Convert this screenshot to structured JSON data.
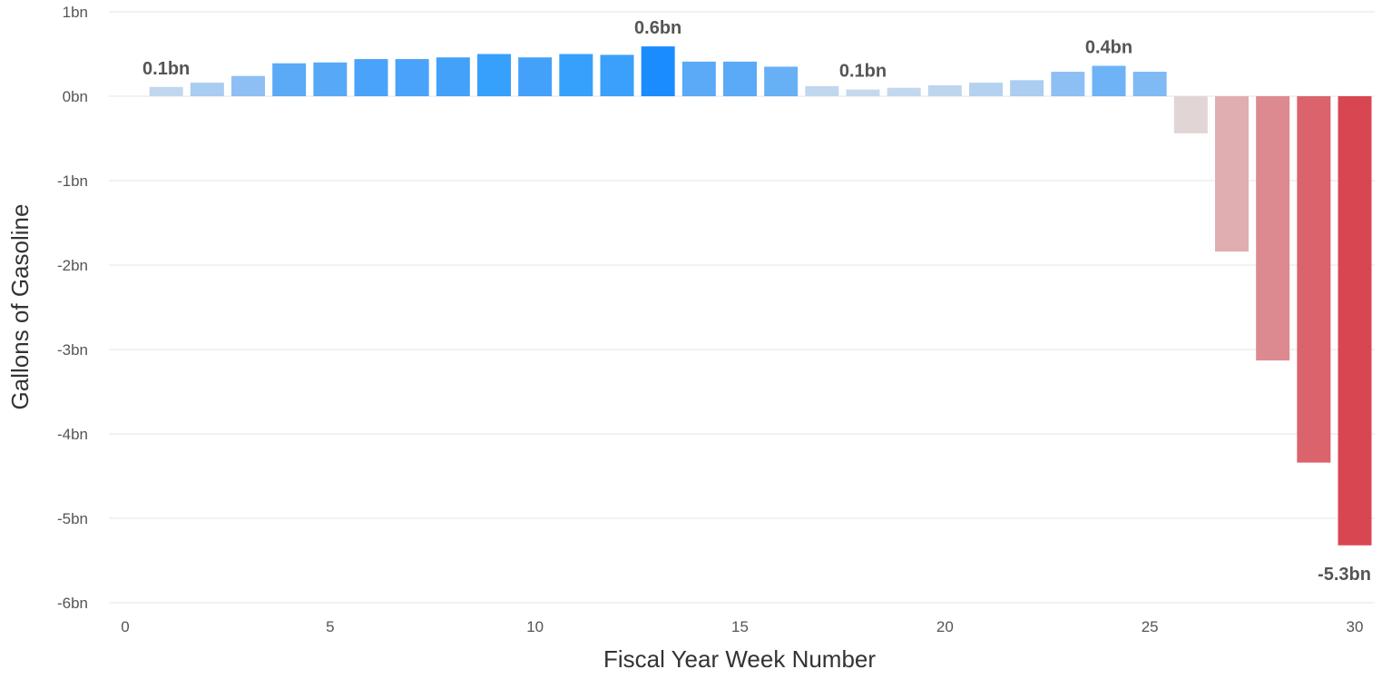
{
  "chart_data": {
    "type": "bar",
    "xlabel": "Fiscal Year Week Number",
    "ylabel": "Gallons of Gasoline",
    "xlim": [
      0,
      30
    ],
    "ylim": [
      -6,
      1
    ],
    "unit": "bn",
    "x_ticks": [
      0,
      5,
      10,
      15,
      20,
      25,
      30
    ],
    "y_ticks": [
      1,
      0,
      -1,
      -2,
      -3,
      -4,
      -5,
      -6
    ],
    "y_tick_labels": [
      "1bn",
      "0bn",
      "-1bn",
      "-2bn",
      "-3bn",
      "-4bn",
      "-5bn",
      "-6bn"
    ],
    "grid": true,
    "legend": "none",
    "x": [
      1,
      2,
      3,
      4,
      5,
      6,
      7,
      8,
      9,
      10,
      11,
      12,
      13,
      14,
      15,
      16,
      17,
      18,
      19,
      20,
      21,
      22,
      23,
      24,
      25,
      26,
      27,
      28,
      29,
      30
    ],
    "values": [
      0.11,
      0.16,
      0.24,
      0.39,
      0.4,
      0.44,
      0.44,
      0.46,
      0.5,
      0.46,
      0.5,
      0.49,
      0.59,
      0.41,
      0.41,
      0.35,
      0.12,
      0.08,
      0.1,
      0.13,
      0.16,
      0.19,
      0.29,
      0.36,
      0.29,
      -0.44,
      -1.84,
      -3.13,
      -4.34,
      -5.32
    ],
    "colors": [
      "#c1d7ee",
      "#a9ccf1",
      "#8ebff4",
      "#5aaaf7",
      "#57a9f8",
      "#4aa3f8",
      "#4aa3f8",
      "#44a1f9",
      "#36a0fc",
      "#44a1f9",
      "#36a0fc",
      "#3aa0fb",
      "#1a8cfd",
      "#5aaaf7",
      "#5aaaf7",
      "#67b0f6",
      "#c1d7ee",
      "#c6d9ec",
      "#c3d8ed",
      "#bdd6ee",
      "#b4d2ef",
      "#aacdf0",
      "#8ebff4",
      "#6db3f6",
      "#7fbaf4",
      "#e2d5d6",
      "#e0adb0",
      "#dc8a8f",
      "#da636c",
      "#d84652"
    ],
    "data_labels": [
      {
        "x": 1,
        "text": "0.1bn"
      },
      {
        "x": 13,
        "text": "0.6bn"
      },
      {
        "x": 18,
        "text": "0.1bn"
      },
      {
        "x": 24,
        "text": "0.4bn"
      },
      {
        "x": 30,
        "text": "-5.3bn"
      }
    ]
  }
}
